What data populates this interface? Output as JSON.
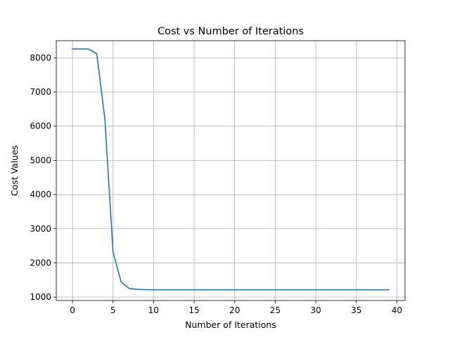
{
  "chart_data": {
    "type": "line",
    "title": "Cost vs Number of Iterations",
    "xlabel": "Number of Iterations",
    "ylabel": "Cost Values",
    "xlim": [
      -2,
      41
    ],
    "ylim": [
      900,
      8500
    ],
    "xticks": [
      "0",
      "5",
      "10",
      "15",
      "20",
      "25",
      "30",
      "35",
      "40"
    ],
    "yticks": [
      "1000",
      "2000",
      "3000",
      "4000",
      "5000",
      "6000",
      "7000",
      "8000"
    ],
    "grid": true,
    "series_color": "#1f77b4",
    "series": [
      {
        "x": [
          0,
          1,
          2,
          3,
          4,
          5,
          6,
          7,
          8,
          9,
          10,
          11,
          12,
          13,
          14,
          15,
          16,
          17,
          18,
          19,
          20,
          21,
          22,
          23,
          24,
          25,
          26,
          27,
          28,
          29,
          30,
          31,
          32,
          33,
          34,
          35,
          36,
          37,
          38,
          39
        ],
        "values": [
          8260,
          8260,
          8255,
          8120,
          6200,
          2320,
          1440,
          1250,
          1225,
          1218,
          1215,
          1215,
          1215,
          1215,
          1215,
          1215,
          1215,
          1215,
          1215,
          1215,
          1215,
          1215,
          1215,
          1215,
          1215,
          1215,
          1215,
          1215,
          1215,
          1215,
          1215,
          1215,
          1215,
          1215,
          1215,
          1215,
          1215,
          1215,
          1215,
          1215
        ]
      }
    ]
  }
}
